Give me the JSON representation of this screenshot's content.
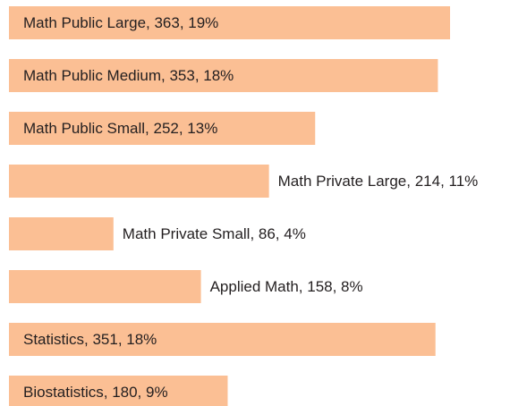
{
  "chart_data": {
    "type": "bar",
    "orientation": "horizontal",
    "categories": [
      "Math Public Large",
      "Math Public Medium",
      "Math Public Small",
      "Math Private Large",
      "Math Private Small",
      "Applied Math",
      "Statistics",
      "Biostatistics"
    ],
    "values": [
      363,
      353,
      252,
      214,
      86,
      158,
      351,
      180
    ],
    "value_labels": [
      "Math Public Large, 363, 19%",
      "Math Public Medium, 353, 18%",
      "Math Public Small, 252, 13%",
      "Math Private Large, 214, 11%",
      "Math Private Small, 86, 4%",
      "Applied Math, 158, 8%",
      "Statistics, 351, 18%",
      "Biostatistics, 180, 9%"
    ],
    "label_positions": [
      "inside",
      "inside",
      "inside",
      "outside",
      "outside",
      "outside",
      "inside",
      "inside"
    ],
    "color": "#fbbf94"
  }
}
